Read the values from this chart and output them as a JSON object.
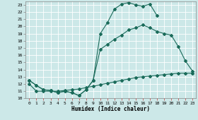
{
  "xlabel": "Humidex (Indice chaleur)",
  "bg_color": "#cce8e8",
  "grid_color": "#aacccc",
  "line_color": "#1a6b5a",
  "xlim": [
    -0.5,
    23.5
  ],
  "ylim": [
    10.0,
    23.5
  ],
  "yticks": [
    10,
    11,
    12,
    13,
    14,
    15,
    16,
    17,
    18,
    19,
    20,
    21,
    22,
    23
  ],
  "xticks": [
    0,
    1,
    2,
    3,
    4,
    5,
    6,
    7,
    8,
    9,
    10,
    11,
    12,
    13,
    14,
    15,
    16,
    17,
    18,
    19,
    20,
    21,
    22,
    23
  ],
  "curve_top": {
    "x": [
      0,
      1,
      2,
      3,
      4,
      5,
      6,
      7,
      8,
      9,
      10,
      11,
      12,
      13,
      14,
      15,
      16,
      17,
      18
    ],
    "y": [
      12.5,
      11.8,
      11.2,
      11.1,
      10.8,
      11.0,
      10.8,
      10.4,
      11.2,
      12.5,
      19.0,
      20.5,
      22.4,
      23.1,
      23.3,
      23.0,
      22.8,
      23.1,
      21.5
    ]
  },
  "curve_mid": {
    "x": [
      0,
      1,
      2,
      3,
      4,
      5,
      6,
      7,
      8,
      9,
      10,
      11,
      12,
      13,
      14,
      15,
      16,
      17,
      18,
      19,
      20,
      21,
      22,
      23
    ],
    "y": [
      12.5,
      11.8,
      11.2,
      11.1,
      10.8,
      11.0,
      10.8,
      10.4,
      11.2,
      12.5,
      16.8,
      17.5,
      18.2,
      18.8,
      19.5,
      19.8,
      20.2,
      19.8,
      19.3,
      19.0,
      18.8,
      17.2,
      15.2,
      13.8
    ]
  },
  "curve_bot": {
    "x": [
      0,
      1,
      2,
      3,
      4,
      5,
      6,
      7,
      8,
      9,
      10,
      11,
      12,
      13,
      14,
      15,
      16,
      17,
      18,
      19,
      20,
      21,
      22,
      23
    ],
    "y": [
      12.0,
      11.0,
      11.0,
      11.0,
      11.0,
      11.1,
      11.2,
      11.3,
      11.5,
      11.7,
      11.9,
      12.1,
      12.3,
      12.5,
      12.7,
      12.9,
      13.0,
      13.1,
      13.2,
      13.3,
      13.4,
      13.5,
      13.5,
      13.5
    ]
  }
}
